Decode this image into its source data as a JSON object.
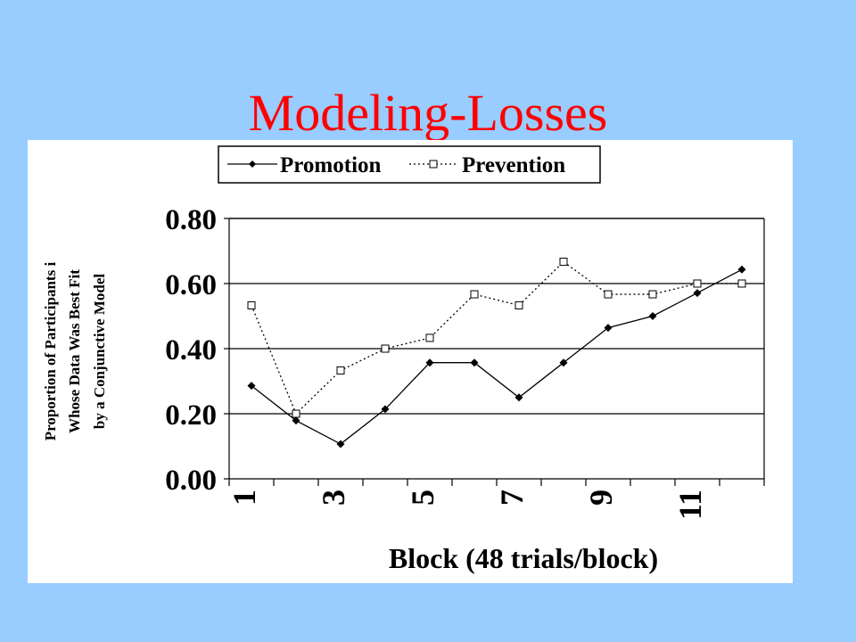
{
  "slide": {
    "title": "Modeling-Losses"
  },
  "colors": {
    "background": "#99ccff",
    "title": "#ff0000",
    "panel": "#ffffff",
    "ink": "#000000"
  },
  "chart_data": {
    "type": "line",
    "title": "",
    "xlabel": "Block (48 trials/block)",
    "ylabel_lines": [
      "Proportion of Participants i",
      "Whose Data Was Best Fit",
      "by a Conjunctive Model"
    ],
    "x": [
      1,
      2,
      3,
      4,
      5,
      6,
      7,
      8,
      9,
      10,
      11,
      12
    ],
    "x_tick_labels": [
      "1",
      "",
      "3",
      "",
      "5",
      "",
      "7",
      "",
      "9",
      "",
      "11",
      ""
    ],
    "ylim": [
      0,
      0.8
    ],
    "y_ticks": [
      0,
      0.2,
      0.4,
      0.6,
      0.8
    ],
    "y_tick_labels": [
      "0.00",
      "0.20",
      "0.40",
      "0.60",
      "0.80"
    ],
    "grid": "horizontal",
    "legend_position": "top",
    "series": [
      {
        "name": "Promotion",
        "style": "solid",
        "marker": "filled-diamond",
        "values": [
          0.286,
          0.179,
          0.107,
          0.214,
          0.357,
          0.357,
          0.25,
          0.357,
          0.464,
          0.5,
          0.571,
          0.643
        ]
      },
      {
        "name": "Prevention",
        "style": "dotted",
        "marker": "open-square",
        "values": [
          0.533,
          0.2,
          0.333,
          0.4,
          0.433,
          0.567,
          0.533,
          0.667,
          0.567,
          0.567,
          0.6,
          0.6
        ]
      }
    ]
  }
}
